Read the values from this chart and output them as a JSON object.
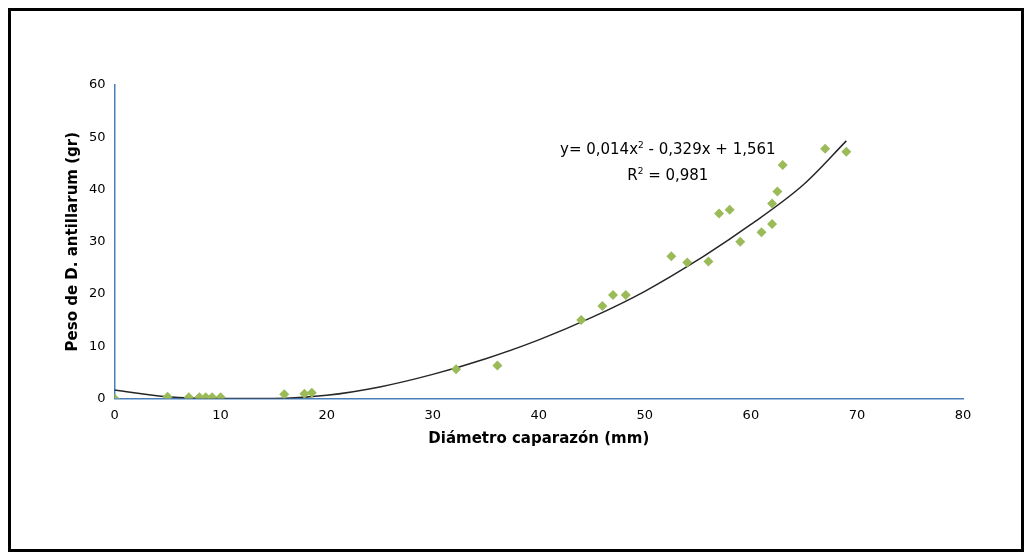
{
  "chart_data": {
    "type": "scatter",
    "xlabel": "Diámetro caparazón (mm)",
    "ylabel": "Peso de D. antillarum (gr)",
    "annotations": [
      "y= 0,014x$^{2}$ - 0,329x + 1,561",
      "R$^{2}$ = 0,981"
    ],
    "series": [
      {
        "color": "#9bbb59",
        "marker": "diamond",
        "x": [
          0,
          5,
          7,
          8,
          8.6,
          9.2,
          10,
          16,
          17.9,
          18.6,
          32.2,
          36.1,
          44,
          46,
          47,
          48.2,
          52.5,
          54,
          56,
          57,
          58,
          59,
          61,
          62,
          62,
          62.5,
          63,
          67,
          69
        ],
        "values": [
          0,
          0.3,
          0.2,
          0.2,
          0.2,
          0.2,
          0.2,
          0.8,
          0.9,
          1.1,
          5.6,
          6.3,
          15,
          17.7,
          19.8,
          19.8,
          27.2,
          26,
          26.2,
          35.4,
          36.1,
          30,
          31.8,
          33.4,
          37.3,
          39.6,
          44.7,
          47.8,
          47.2
        ]
      },
      {
        "type": "line",
        "color": "#262626",
        "marker": "none",
        "x": [
          0,
          5,
          10,
          15,
          20,
          25,
          30,
          35,
          40,
          45,
          50,
          55,
          60,
          65,
          69
        ],
        "values": [
          1.6,
          0.3,
          0,
          0,
          0.6,
          2.2,
          4.6,
          7.6,
          11.2,
          15.5,
          20.5,
          26.5,
          33.3,
          41,
          49.3
        ]
      }
    ],
    "xlim": [
      0,
      80
    ],
    "xticks": [
      0,
      10,
      20,
      30,
      40,
      50,
      60,
      70,
      80
    ],
    "ylim": [
      0,
      60
    ],
    "yticks": [
      0,
      10,
      20,
      30,
      40,
      50,
      60
    ],
    "grid": false,
    "legend": false
  }
}
